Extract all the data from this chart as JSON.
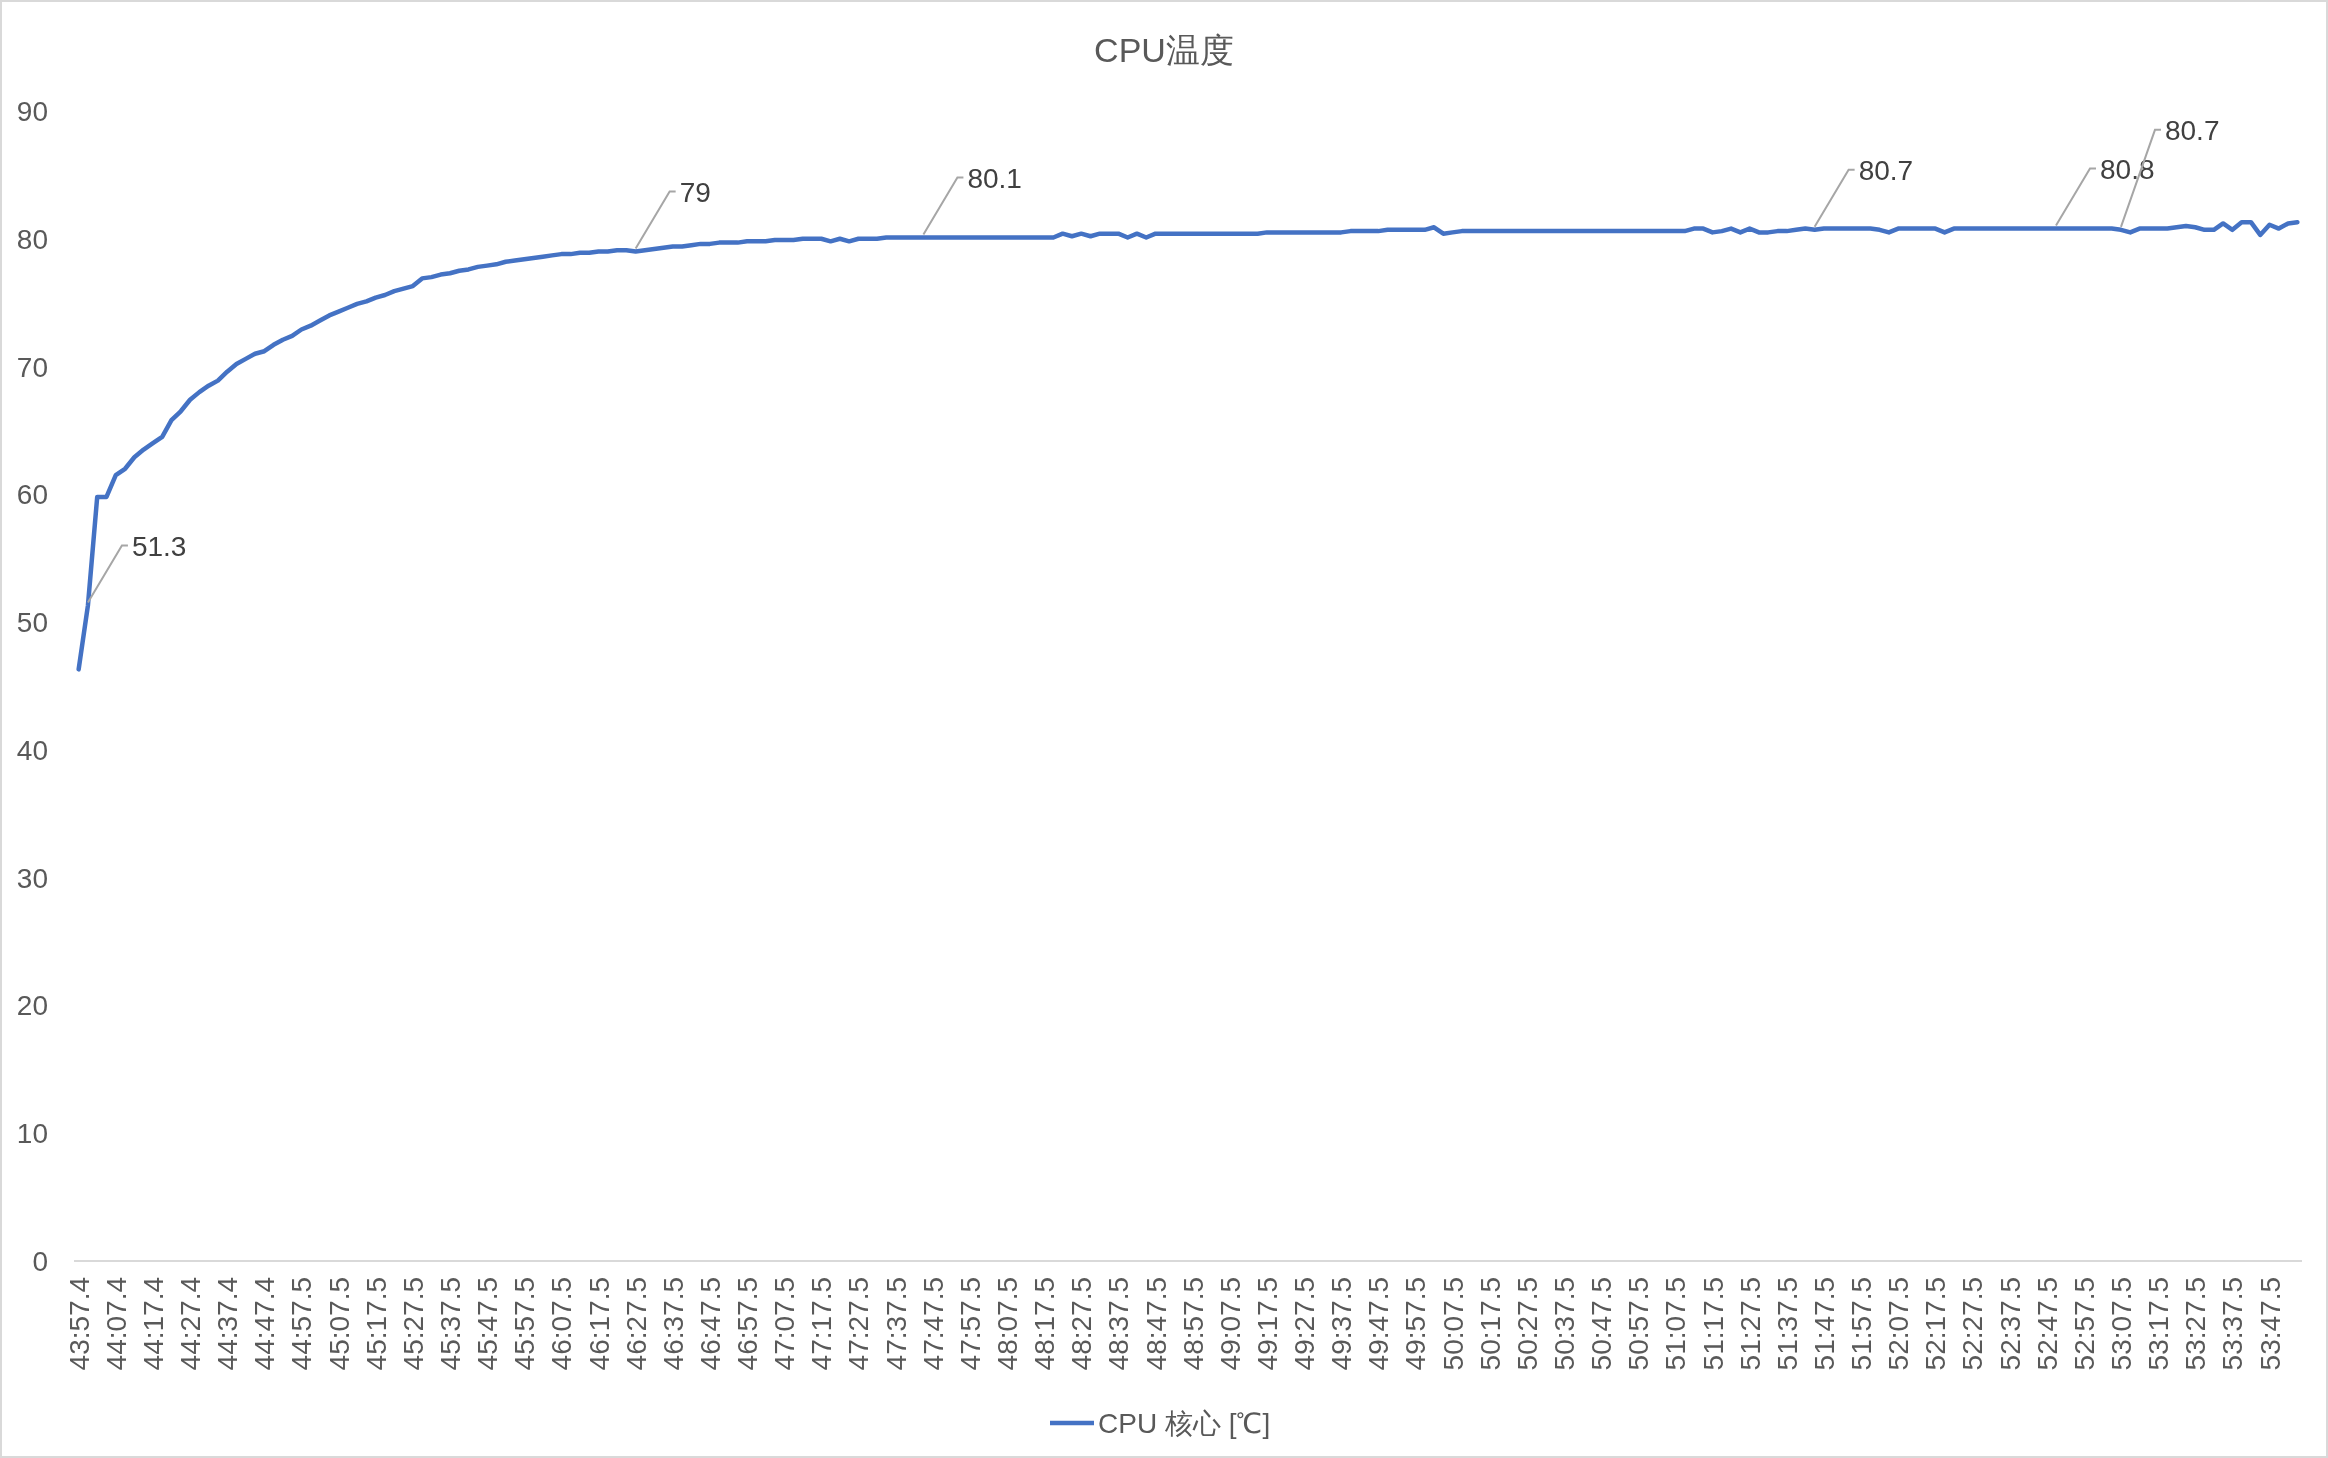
{
  "chart_data": {
    "type": "line",
    "title": "CPU温度",
    "categories": [
      "43:57.4",
      null,
      null,
      null,
      "44:07.4",
      null,
      null,
      null,
      "44:17.4",
      null,
      null,
      null,
      "44:27.4",
      null,
      null,
      null,
      "44:37.4",
      null,
      null,
      null,
      "44:47.4",
      null,
      null,
      null,
      "44:57.5",
      null,
      null,
      null,
      "45:07.5",
      null,
      null,
      null,
      "45:17.5",
      null,
      null,
      null,
      "45:27.5",
      null,
      null,
      null,
      "45:37.5",
      null,
      null,
      null,
      "45:47.5",
      null,
      null,
      null,
      "45:57.5",
      null,
      null,
      null,
      "46:07.5",
      null,
      null,
      null,
      "46:17.5",
      null,
      null,
      null,
      "46:27.5",
      null,
      null,
      null,
      "46:37.5",
      null,
      null,
      null,
      "46:47.5",
      null,
      null,
      null,
      "46:57.5",
      null,
      null,
      null,
      "47:07.5",
      null,
      null,
      null,
      "47:17.5",
      null,
      null,
      null,
      "47:27.5",
      null,
      null,
      null,
      "47:37.5",
      null,
      null,
      null,
      "47:47.5",
      null,
      null,
      null,
      "47:57.5",
      null,
      null,
      null,
      "48:07.5",
      null,
      null,
      null,
      "48:17.5",
      null,
      null,
      null,
      "48:27.5",
      null,
      null,
      null,
      "48:37.5",
      null,
      null,
      null,
      "48:47.5",
      null,
      null,
      null,
      "48:57.5",
      null,
      null,
      null,
      "49:07.5",
      null,
      null,
      null,
      "49:17.5",
      null,
      null,
      null,
      "49:27.5",
      null,
      null,
      null,
      "49:37.5",
      null,
      null,
      null,
      "49:47.5",
      null,
      null,
      null,
      "49:57.5",
      null,
      null,
      null,
      "50:07.5",
      null,
      null,
      null,
      "50:17.5",
      null,
      null,
      null,
      "50:27.5",
      null,
      null,
      null,
      "50:37.5",
      null,
      null,
      null,
      "50:47.5",
      null,
      null,
      null,
      "50:57.5",
      null,
      null,
      null,
      "51:07.5",
      null,
      null,
      null,
      "51:17.5",
      null,
      null,
      null,
      "51:27.5",
      null,
      null,
      null,
      "51:37.5",
      null,
      null,
      null,
      "51:47.5",
      null,
      null,
      null,
      "51:57.5",
      null,
      null,
      null,
      "52:07.5",
      null,
      null,
      null,
      "52:17.5",
      null,
      null,
      null,
      "52:27.5",
      null,
      null,
      null,
      "52:37.5",
      null,
      null,
      null,
      "52:47.5",
      null,
      null,
      null,
      "52:57.5",
      null,
      null,
      null,
      "53:07.5",
      null,
      null,
      null,
      "53:17.5",
      null,
      null,
      null,
      "53:27.5",
      null,
      null,
      null,
      "53:37.5",
      null,
      null,
      null,
      "53:47.5",
      null,
      null,
      null
    ],
    "series": [
      {
        "name": "CPU 核心 [℃]",
        "color": "#4472c4",
        "values": [
          46.3,
          51.3,
          59.8,
          59.8,
          61.5,
          62.0,
          62.9,
          63.5,
          64.0,
          64.5,
          65.8,
          66.5,
          67.4,
          68.0,
          68.5,
          68.9,
          69.6,
          70.2,
          70.6,
          71.0,
          71.2,
          71.7,
          72.1,
          72.4,
          72.9,
          73.2,
          73.6,
          74.0,
          74.3,
          74.6,
          74.9,
          75.1,
          75.4,
          75.6,
          75.9,
          76.1,
          76.3,
          76.9,
          77.0,
          77.2,
          77.3,
          77.5,
          77.6,
          77.8,
          77.9,
          78.0,
          78.2,
          78.3,
          78.4,
          78.5,
          78.6,
          78.7,
          78.8,
          78.8,
          78.9,
          78.9,
          79.0,
          79.0,
          79.1,
          79.1,
          79.0,
          79.1,
          79.2,
          79.3,
          79.4,
          79.4,
          79.5,
          79.6,
          79.6,
          79.7,
          79.7,
          79.7,
          79.8,
          79.8,
          79.8,
          79.9,
          79.9,
          79.9,
          80.0,
          80.0,
          80.0,
          79.8,
          80.0,
          79.8,
          80.0,
          80.0,
          80.0,
          80.1,
          80.1,
          80.1,
          80.1,
          80.1,
          80.1,
          80.1,
          80.1,
          80.1,
          80.1,
          80.1,
          80.1,
          80.1,
          80.1,
          80.1,
          80.1,
          80.1,
          80.1,
          80.1,
          80.4,
          80.2,
          80.4,
          80.2,
          80.4,
          80.4,
          80.4,
          80.1,
          80.4,
          80.1,
          80.4,
          80.4,
          80.4,
          80.4,
          80.4,
          80.4,
          80.4,
          80.4,
          80.4,
          80.4,
          80.4,
          80.4,
          80.5,
          80.5,
          80.5,
          80.5,
          80.5,
          80.5,
          80.5,
          80.5,
          80.5,
          80.6,
          80.6,
          80.6,
          80.6,
          80.7,
          80.7,
          80.7,
          80.7,
          80.7,
          80.9,
          80.4,
          80.5,
          80.6,
          80.6,
          80.6,
          80.6,
          80.6,
          80.6,
          80.6,
          80.6,
          80.6,
          80.6,
          80.6,
          80.6,
          80.6,
          80.6,
          80.6,
          80.6,
          80.6,
          80.6,
          80.6,
          80.6,
          80.6,
          80.6,
          80.6,
          80.6,
          80.6,
          80.8,
          80.8,
          80.5,
          80.6,
          80.8,
          80.5,
          80.8,
          80.5,
          80.5,
          80.6,
          80.6,
          80.7,
          80.8,
          80.7,
          80.8,
          80.8,
          80.8,
          80.8,
          80.8,
          80.8,
          80.7,
          80.5,
          80.8,
          80.8,
          80.8,
          80.8,
          80.8,
          80.5,
          80.8,
          80.8,
          80.8,
          80.8,
          80.8,
          80.8,
          80.8,
          80.8,
          80.8,
          80.8,
          80.8,
          80.8,
          80.8,
          80.8,
          80.8,
          80.8,
          80.8,
          80.8,
          80.7,
          80.5,
          80.8,
          80.8,
          80.8,
          80.8,
          80.9,
          81.0,
          80.9,
          80.7,
          80.7,
          81.2,
          80.7,
          81.3,
          81.3,
          80.3,
          81.1,
          80.8,
          81.2,
          81.3
        ],
        "value_labels": [
          null,
          "51.3",
          null,
          null,
          null,
          null,
          null,
          null,
          null,
          null,
          null,
          null,
          null,
          null,
          null,
          null,
          null,
          null,
          null,
          null,
          null,
          null,
          null,
          null,
          null,
          null,
          null,
          null,
          null,
          null,
          null,
          null,
          null,
          null,
          null,
          null,
          null,
          null,
          null,
          null,
          null,
          null,
          null,
          null,
          null,
          null,
          null,
          null,
          null,
          null,
          null,
          null,
          null,
          null,
          null,
          null,
          null,
          null,
          null,
          null,
          "79",
          null,
          null,
          null,
          null,
          null,
          null,
          null,
          null,
          null,
          null,
          null,
          null,
          null,
          null,
          null,
          null,
          null,
          null,
          null,
          null,
          null,
          null,
          null,
          null,
          null,
          null,
          null,
          null,
          null,
          null,
          "80.1",
          null,
          null,
          null,
          null,
          null,
          null,
          null,
          null,
          null,
          null,
          null,
          null,
          null,
          null,
          null,
          null,
          null,
          null,
          null,
          null,
          null,
          null,
          null,
          null,
          null,
          null,
          null,
          null,
          null,
          null,
          null,
          null,
          null,
          null,
          null,
          null,
          null,
          null,
          null,
          null,
          null,
          null,
          null,
          null,
          null,
          null,
          null,
          null,
          null,
          null,
          null,
          null,
          null,
          null,
          null,
          null,
          null,
          null,
          null,
          null,
          null,
          null,
          null,
          null,
          null,
          null,
          null,
          null,
          null,
          null,
          null,
          null,
          null,
          null,
          null,
          null,
          null,
          null,
          null,
          null,
          null,
          null,
          null,
          null,
          null,
          null,
          null,
          null,
          null,
          null,
          null,
          null,
          null,
          null,
          null,
          "80.7",
          null,
          null,
          null,
          null,
          null,
          null,
          null,
          null,
          null,
          null,
          null,
          null,
          null,
          null,
          null,
          null,
          null,
          null,
          null,
          null,
          null,
          null,
          null,
          null,
          null,
          "80.8",
          null,
          null,
          null,
          null,
          null,
          null,
          "80.7",
          null,
          null,
          null,
          null,
          null,
          null,
          null,
          null,
          null,
          null,
          null,
          null,
          null,
          null,
          null,
          null,
          null,
          null,
          null
        ]
      }
    ],
    "ylim": [
      0,
      90
    ],
    "yticks": [
      0,
      10,
      20,
      30,
      40,
      50,
      60,
      70,
      80,
      90
    ],
    "legend": "bottom",
    "marker": "none",
    "line_style": "solid"
  }
}
